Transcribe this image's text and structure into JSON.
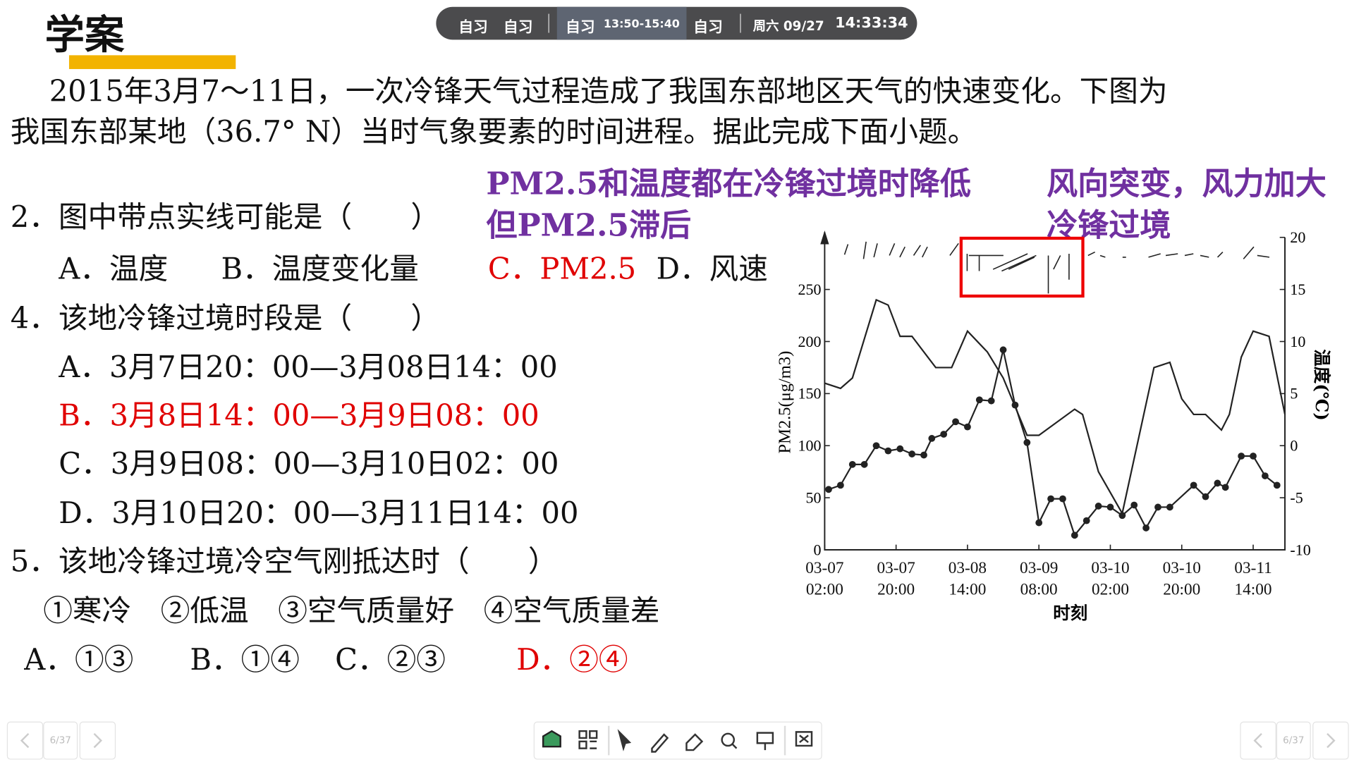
{
  "header": {
    "title": "学案"
  },
  "status_bar": {
    "items": [
      "自习",
      "自习",
      "自习",
      "13:50-15:40",
      "自习",
      "周六 09/27",
      "14:33:34"
    ]
  },
  "intro": {
    "lines": [
      "2015年3月7～11日，一次冷锋天气过程造成了我国东部地区天气的快速变化。下图为",
      "我国东部某地（36.7° N）当时气象要素的时间进程。据此完成下面小题。"
    ]
  },
  "annotations": [
    {
      "lines": [
        "PM2.5和温度都在冷锋过境时降低",
        "但PM2.5滞后"
      ]
    },
    {
      "lines": [
        "风向突变，风力加大",
        "冷锋过境"
      ]
    }
  ],
  "questions": [
    {
      "stem": "2．图中带点实线可能是（　　）",
      "options": [
        {
          "text": "A．温度",
          "correct": false
        },
        {
          "text": "B．温度变化量",
          "correct": false
        },
        {
          "text": "C．PM2.5",
          "correct": true
        },
        {
          "text": "D．风速",
          "correct": false
        }
      ]
    },
    {
      "stem": "4．该地冷锋过境时段是（　　）",
      "options": [
        {
          "text": "A．3月7日20：00—3月08日14：00",
          "correct": false
        },
        {
          "text": "B．3月8日14：00—3月9日08：00",
          "correct": true
        },
        {
          "text": "C．3月9日08：00—3月10日02：00",
          "correct": false
        },
        {
          "text": "D．3月10日20：00—3月11日14：00",
          "correct": false
        }
      ]
    },
    {
      "stem": "5．该地冷锋过境冷空气刚抵达时（　　）",
      "statements": "①寒冷　②低温　③空气质量好　④空气质量差",
      "options": [
        {
          "text": "A．①③",
          "correct": false
        },
        {
          "text": "B．①④",
          "correct": false
        },
        {
          "text": "C．②③",
          "correct": false
        },
        {
          "text": "D．②④",
          "correct": true
        }
      ]
    }
  ],
  "chart_data": {
    "type": "line",
    "ylabel": "PM2.5(μg/m3)",
    "y2label": "温度(℃)",
    "xlabel": "时刻",
    "xlim": [
      0,
      116
    ],
    "xticks": [
      {
        "value": 0,
        "label": "03-07\n02:00"
      },
      {
        "value": 18,
        "label": "03-07\n20:00"
      },
      {
        "value": 36,
        "label": "03-08\n14:00"
      },
      {
        "value": 54,
        "label": "03-09\n08:00"
      },
      {
        "value": 72,
        "label": "03-10\n02:00"
      },
      {
        "value": 90,
        "label": "03-10\n20:00"
      },
      {
        "value": 108,
        "label": "03-11\n14:00"
      }
    ],
    "ylim": [
      0,
      300
    ],
    "yticks": [
      0,
      50,
      100,
      150,
      200,
      250
    ],
    "y2lim": [
      -10,
      20
    ],
    "y2ticks": [
      -10,
      -5,
      0,
      5,
      10,
      15,
      20
    ],
    "series": [
      {
        "color": "#222",
        "marker": "dot",
        "x": [
          1,
          4,
          7,
          10,
          13,
          16,
          19,
          22,
          25,
          27,
          30,
          33,
          36,
          39,
          42,
          45,
          48,
          51,
          54,
          57,
          60,
          63,
          66,
          69,
          72,
          75,
          78,
          81,
          84,
          87,
          93,
          96,
          99,
          101,
          105,
          108,
          111,
          114
        ],
        "values": [
          58,
          62,
          82,
          82,
          100,
          95,
          97,
          92,
          91,
          107,
          111,
          123,
          118,
          144,
          143,
          192,
          139,
          103,
          26,
          49,
          49,
          14,
          28,
          42,
          41,
          33,
          43,
          21,
          41,
          41,
          62,
          51,
          64,
          60,
          90,
          90,
          71,
          62
        ]
      },
      {
        "color": "#222",
        "axis": "y2",
        "x": [
          0,
          4,
          7,
          13,
          16,
          19,
          22,
          28,
          32,
          36,
          41,
          45,
          51,
          54,
          63,
          65,
          69,
          75,
          83,
          87,
          90,
          93,
          96,
          100,
          102,
          105,
          108,
          112,
          116
        ],
        "values": [
          6,
          5.5,
          6.5,
          14,
          13.5,
          10.5,
          10.5,
          7.5,
          7.5,
          11,
          9,
          6.5,
          1,
          1,
          3.5,
          3,
          -2.5,
          -6.5,
          7.5,
          8,
          4.5,
          3,
          3,
          1.5,
          3,
          8.5,
          11,
          10.5,
          3
        ]
      }
    ]
  },
  "footer": {
    "page": "6/37"
  }
}
